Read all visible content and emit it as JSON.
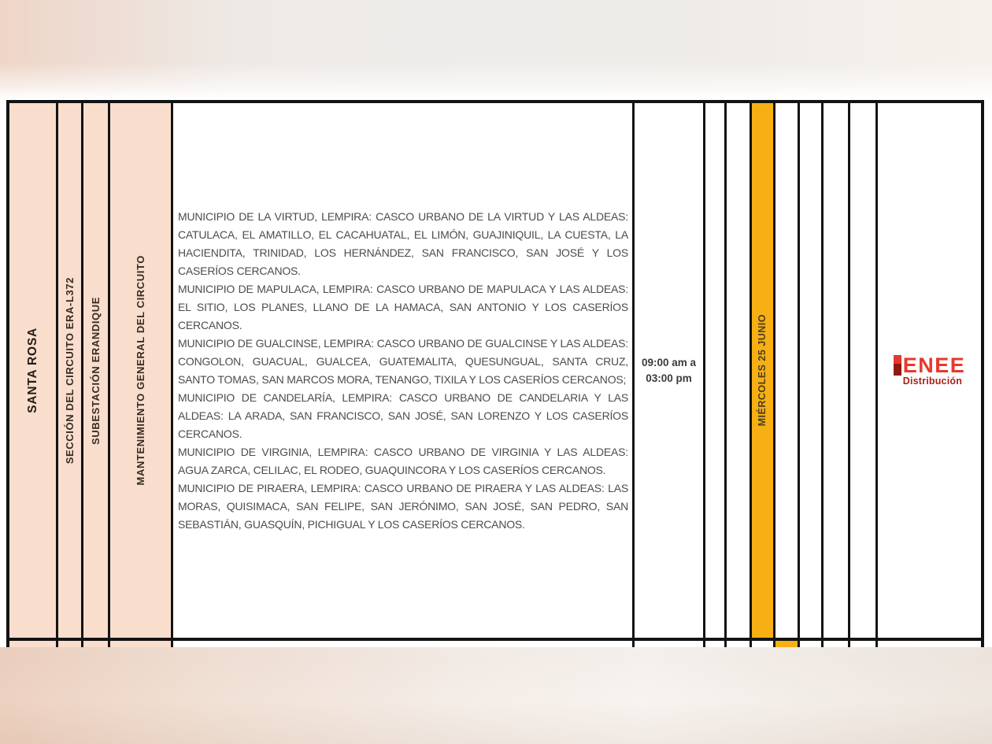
{
  "document": {
    "region": "SANTA ROSA",
    "circuit_section": "SECCIÓN DEL CIRCUITO ERA-L372",
    "substation": "SUBESTACIÓN ERANDIQUE",
    "work_type": "MANTENIMIENTO GENERAL DEL CIRCUITO",
    "affected_areas": [
      "MUNICIPIO DE LA VIRTUD, LEMPIRA: CASCO URBANO DE LA VIRTUD Y LAS ALDEAS: CATULACA, EL AMATILLO, EL CACAHUATAL, EL LIMÓN, GUAJINIQUIL, LA CUESTA, LA HACIENDITA, TRINIDAD, LOS HERNÁNDEZ, SAN FRANCISCO, SAN JOSÉ Y LOS CASERÍOS CERCANOS.",
      "MUNICIPIO DE MAPULACA, LEMPIRA: CASCO URBANO DE MAPULACA Y LAS ALDEAS: EL SITIO, LOS PLANES, LLANO DE LA HAMACA, SAN ANTONIO Y LOS CASERÍOS CERCANOS.",
      "MUNICIPIO DE GUALCINSE, LEMPIRA: CASCO URBANO DE GUALCINSE Y LAS ALDEAS: CONGOLON, GUACUAL, GUALCEA, GUATEMALITA, QUESUNGUAL, SANTA CRUZ, SANTO TOMAS, SAN MARCOS MORA, TENANGO, TIXILA Y LOS CASERÍOS CERCANOS;",
      "MUNICIPIO DE CANDELARÍA, LEMPIRA: CASCO URBANO DE CANDELARIA Y LAS ALDEAS: LA ARADA, SAN FRANCISCO, SAN JOSÉ, SAN LORENZO Y LOS CASERÍOS CERCANOS.",
      "MUNICIPIO DE VIRGINIA, LEMPIRA: CASCO URBANO DE VIRGINIA Y LAS ALDEAS: AGUA ZARCA, CELILAC, EL RODEO, GUAQUINCORA Y LOS CASERÍOS CERCANOS.",
      "MUNICIPIO DE PIRAERA, LEMPIRA: CASCO URBANO DE PIRAERA Y LAS ALDEAS: LAS MORAS, QUISIMACA, SAN FELIPE, SAN JERÓNIMO, SAN JOSÉ, SAN PEDRO, SAN SEBASTIÁN, GUASQUÍN, PICHIGUAL Y LOS CASERÍOS CERCANOS."
    ],
    "time_range": {
      "line1": "09:00 am a",
      "line2": "03:00 pm"
    },
    "scheduled_day": "MIÉRCOLES 25 JUNIO"
  },
  "logo": {
    "brand": "ENEE",
    "division": "Distribución"
  },
  "colors": {
    "cell_pink": "#f9ddcd",
    "highlight_yellow": "#f7b013",
    "border_black": "#131313",
    "body_text": "#4c4c4c",
    "logo_red": "#e8382c",
    "logo_dark_red": "#a6231b"
  }
}
